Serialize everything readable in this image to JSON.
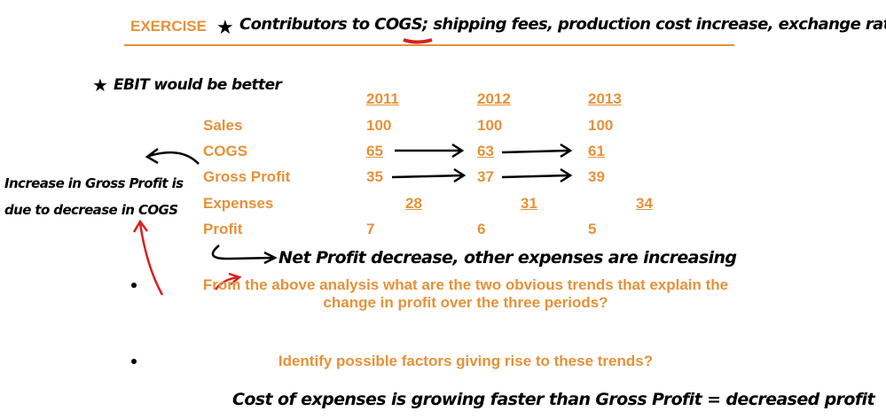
{
  "header": {
    "title": "EXERCISE"
  },
  "notes": [
    "Contributors to COGS; shipping fees, production cost increase, exchange rate",
    "EBIT would be better",
    "Increase in Gross Profit is due to decrease in COGS",
    "Net Profit decrease, other expenses are increasing",
    "Cost of expenses is growing faster than Gross Profit = decreased profit"
  ],
  "table": {
    "columns": [
      "2011",
      "2012",
      "2013"
    ],
    "rows": [
      [
        "Sales",
        100,
        100,
        100
      ],
      [
        "COGS",
        65,
        63,
        61
      ],
      [
        "Gross Profit",
        35,
        37,
        39
      ],
      [
        "Expenses",
        28,
        31,
        34
      ],
      [
        "Profit",
        7,
        6,
        5
      ]
    ]
  },
  "bullets": [
    "From the above analysis what are the two obvious trends that explain the change in profit over the three periods?",
    "Identify possible factors giving rise to these trends?"
  ]
}
